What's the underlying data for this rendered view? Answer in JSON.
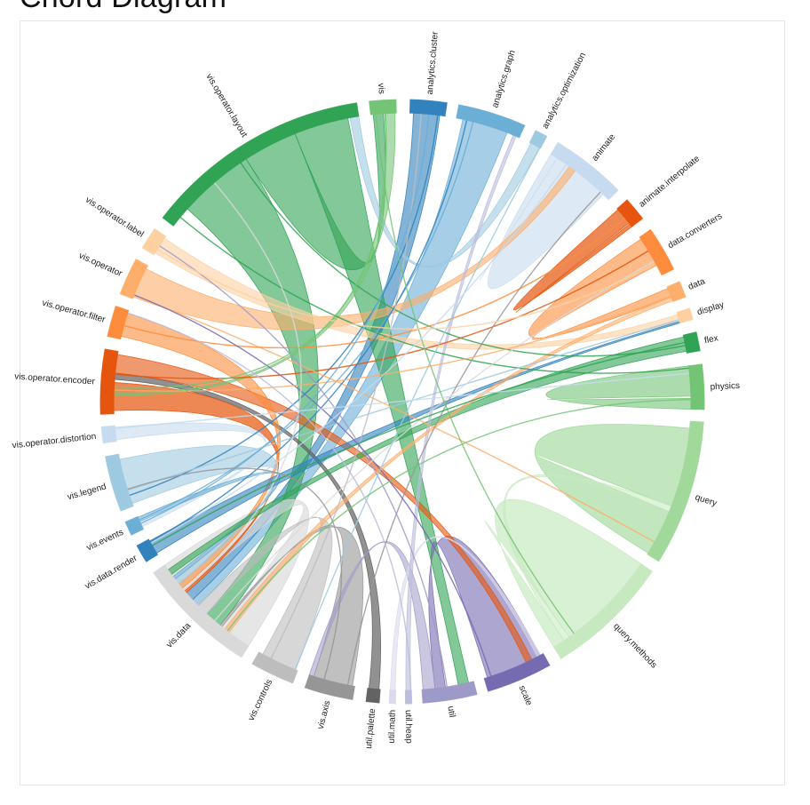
{
  "page": {
    "title": "Chord Diagram"
  },
  "diagram": {
    "type": "chord",
    "groups": [
      {
        "name": "analytics.cluster",
        "color": "#3182bd"
      },
      {
        "name": "analytics.graph",
        "color": "#6baed6"
      },
      {
        "name": "analytics.optimization",
        "color": "#9ecae1"
      },
      {
        "name": "animate",
        "color": "#c6dbef"
      },
      {
        "name": "animate.interpolate",
        "color": "#e6550d"
      },
      {
        "name": "data.converters",
        "color": "#fd8d3c"
      },
      {
        "name": "data",
        "color": "#fdae6b"
      },
      {
        "name": "display",
        "color": "#fdd0a2"
      },
      {
        "name": "flex",
        "color": "#31a354"
      },
      {
        "name": "physics",
        "color": "#74c476"
      },
      {
        "name": "query",
        "color": "#a1d99b"
      },
      {
        "name": "query.methods",
        "color": "#c7e9c0"
      },
      {
        "name": "scale",
        "color": "#756bb1"
      },
      {
        "name": "util",
        "color": "#9e9ac8"
      },
      {
        "name": "util.heap",
        "color": "#bcbddc"
      },
      {
        "name": "util.math",
        "color": "#dadaeb"
      },
      {
        "name": "util.palette",
        "color": "#636363"
      },
      {
        "name": "vis.axis",
        "color": "#969696"
      },
      {
        "name": "vis.controls",
        "color": "#bdbdbd"
      },
      {
        "name": "vis.data",
        "color": "#d9d9d9"
      },
      {
        "name": "vis.data.render",
        "color": "#3182bd"
      },
      {
        "name": "vis.events",
        "color": "#6baed6"
      },
      {
        "name": "vis.legend",
        "color": "#9ecae1"
      },
      {
        "name": "vis.operator.distortion",
        "color": "#c6dbef"
      },
      {
        "name": "vis.operator.encoder",
        "color": "#e6550d"
      },
      {
        "name": "vis.operator.filter",
        "color": "#fd8d3c"
      },
      {
        "name": "vis.operator",
        "color": "#fdae6b"
      },
      {
        "name": "vis.operator.label",
        "color": "#fdd0a2"
      },
      {
        "name": "vis.operator.layout",
        "color": "#31a354"
      },
      {
        "name": "vis",
        "color": "#74c476"
      }
    ]
  }
}
